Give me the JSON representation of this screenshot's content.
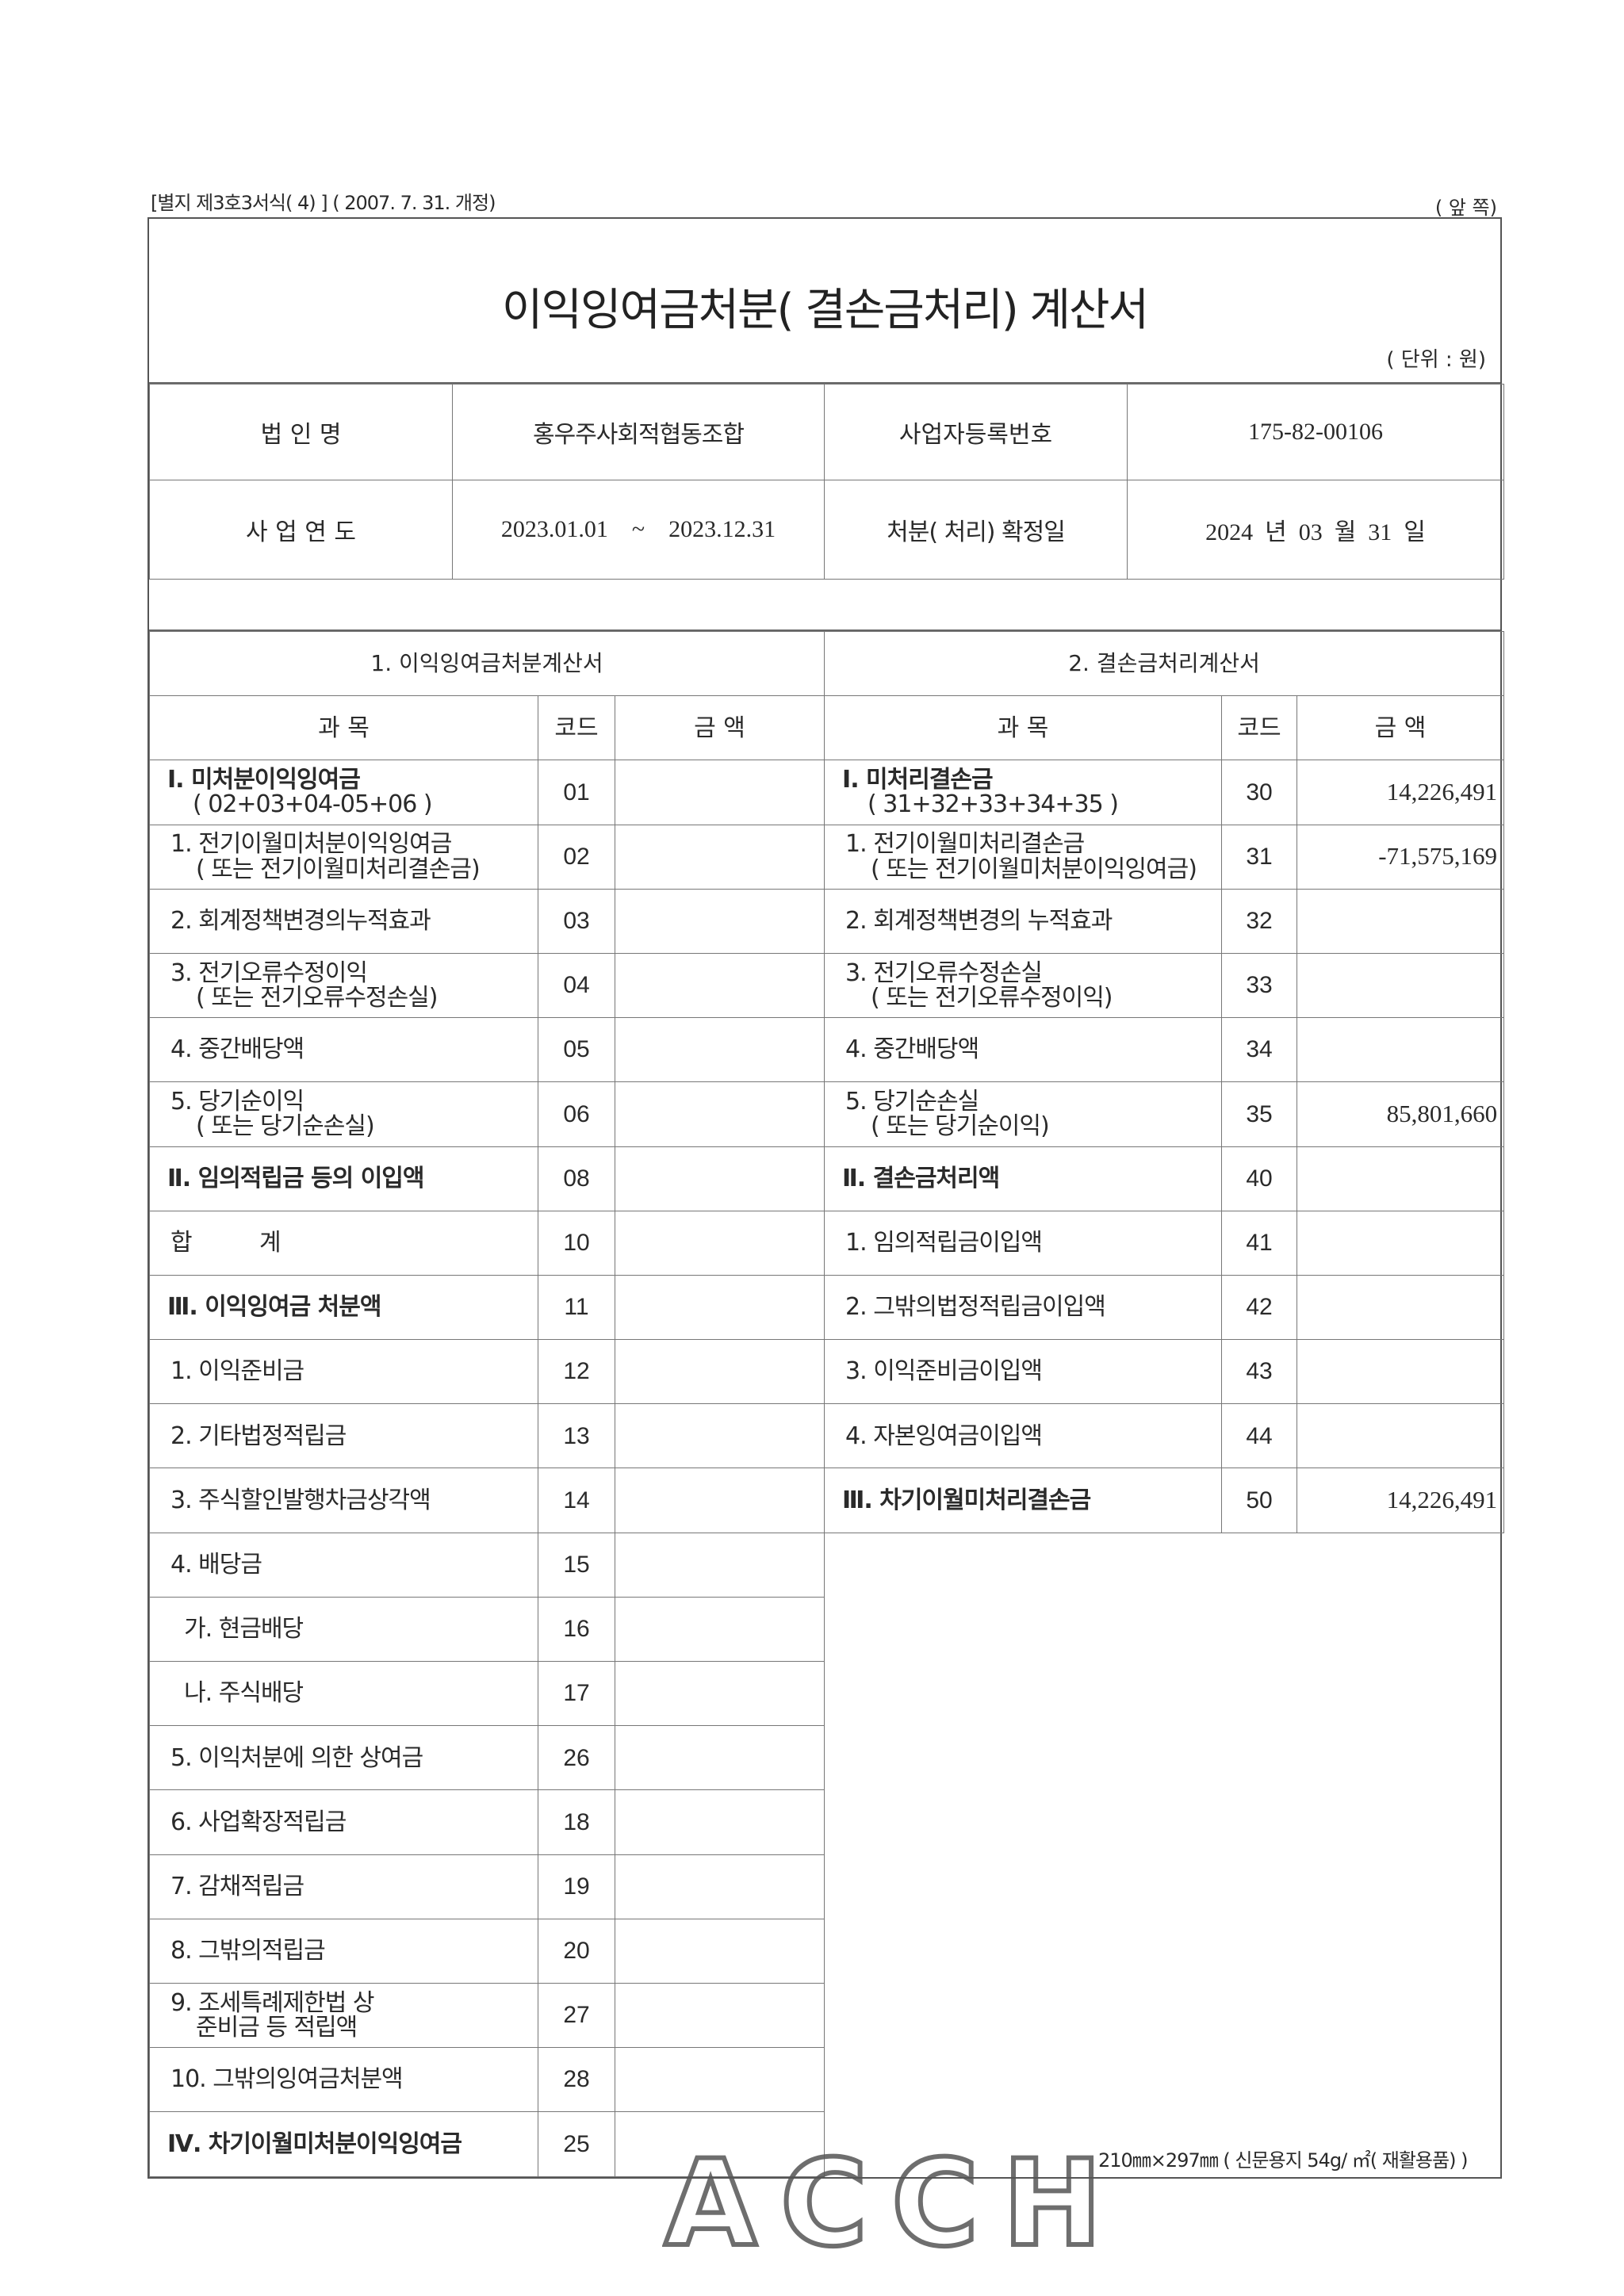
{
  "header": {
    "form_ref": "[별지 제3호3서식( 4) ] ( 2007. 7. 31. 개정)",
    "side": "( 앞 쪽)"
  },
  "title": "이익잉여금처분( 결손금처리) 계산서",
  "unit": "( 단위 : 원)",
  "info": {
    "corp_name_label": "법 인 명",
    "corp_name": "홍우주사회적협동조합",
    "biz_no_label": "사업자등록번호",
    "biz_no": "175-82-00106",
    "period_label": "사 업 연 도",
    "period_start": "2023.01.01",
    "period_sep": "~",
    "period_end": "2023.12.31",
    "confirm_label": "처분( 처리) 확정일",
    "confirm_date": "2024  년  03  월  31  일"
  },
  "sections": {
    "left_title": "1. 이익잉여금처분계산서",
    "right_title": "2. 결손금처리계산서"
  },
  "columns": {
    "item": "과  목",
    "code": "코드",
    "amount": "금  액"
  },
  "left_rows": [
    {
      "label": "Ⅰ. 미처분이익잉여금",
      "sub": "( 02+03+04-05+06 )",
      "code": "01",
      "amount": "",
      "bold": true
    },
    {
      "label": "1. 전기이월미처분이익잉여금",
      "sub": "( 또는 전기이월미처리결손금)",
      "code": "02",
      "amount": ""
    },
    {
      "label": "2. 회계정책변경의누적효과",
      "code": "03",
      "amount": ""
    },
    {
      "label": "3. 전기오류수정이익",
      "sub": "( 또는 전기오류수정손실)",
      "code": "04",
      "amount": ""
    },
    {
      "label": "4. 중간배당액",
      "code": "05",
      "amount": ""
    },
    {
      "label": "5. 당기순이익",
      "sub": "( 또는 당기순손실)",
      "code": "06",
      "amount": ""
    },
    {
      "label": "Ⅱ. 임의적립금 등의 이입액",
      "code": "08",
      "amount": "",
      "bold": true
    },
    {
      "label": "합          계",
      "code": "10",
      "amount": ""
    },
    {
      "label": "Ⅲ. 이익잉여금 처분액",
      "code": "11",
      "amount": "",
      "bold": true
    },
    {
      "label": "1. 이익준비금",
      "code": "12",
      "amount": ""
    },
    {
      "label": "2. 기타법정적립금",
      "code": "13",
      "amount": ""
    },
    {
      "label": "3. 주식할인발행차금상각액",
      "code": "14",
      "amount": ""
    },
    {
      "label": "4. 배당금",
      "code": "15",
      "amount": ""
    },
    {
      "label": "  가. 현금배당",
      "code": "16",
      "amount": ""
    },
    {
      "label": "  나. 주식배당",
      "code": "17",
      "amount": ""
    },
    {
      "label": "5. 이익처분에 의한 상여금",
      "code": "26",
      "amount": ""
    },
    {
      "label": "6. 사업확장적립금",
      "code": "18",
      "amount": ""
    },
    {
      "label": "7. 감채적립금",
      "code": "19",
      "amount": ""
    },
    {
      "label": "8. 그밖의적립금",
      "code": "20",
      "amount": ""
    },
    {
      "label": "9. 조세특례제한법 상",
      "sub": "준비금 등 적립액",
      "code": "27",
      "amount": ""
    },
    {
      "label": "10. 그밖의잉여금처분액",
      "code": "28",
      "amount": ""
    },
    {
      "label": "Ⅳ. 차기이월미처분이익잉여금",
      "code": "25",
      "amount": "",
      "bold": true
    }
  ],
  "right_rows": [
    {
      "label": "Ⅰ. 미처리결손금",
      "sub": "( 31+32+33+34+35 )",
      "code": "30",
      "amount": "14,226,491",
      "bold": true
    },
    {
      "label": "1. 전기이월미처리결손금",
      "sub": "( 또는 전기이월미처분이익잉여금)",
      "code": "31",
      "amount": "-71,575,169"
    },
    {
      "label": "2. 회계정책변경의 누적효과",
      "code": "32",
      "amount": ""
    },
    {
      "label": "3. 전기오류수정손실",
      "sub": "( 또는 전기오류수정이익)",
      "code": "33",
      "amount": ""
    },
    {
      "label": "4. 중간배당액",
      "code": "34",
      "amount": ""
    },
    {
      "label": "5. 당기순손실",
      "sub": "( 또는 당기순이익)",
      "code": "35",
      "amount": "85,801,660"
    },
    {
      "label": "Ⅱ. 결손금처리액",
      "code": "40",
      "amount": "",
      "bold": true
    },
    {
      "label": "1. 임의적립금이입액",
      "code": "41",
      "amount": ""
    },
    {
      "label": "2. 그밖의법정적립금이입액",
      "code": "42",
      "amount": ""
    },
    {
      "label": "3. 이익준비금이입액",
      "code": "43",
      "amount": ""
    },
    {
      "label": "4. 자본잉여금이입액",
      "code": "44",
      "amount": ""
    },
    {
      "label": "Ⅲ. 차기이월미처리결손금",
      "code": "50",
      "amount": "14,226,491",
      "bold": true
    }
  ],
  "footer": "210㎜×297㎜ ( 신문용지 54g/ ㎡( 재활용품) )",
  "watermark": "ACCH"
}
